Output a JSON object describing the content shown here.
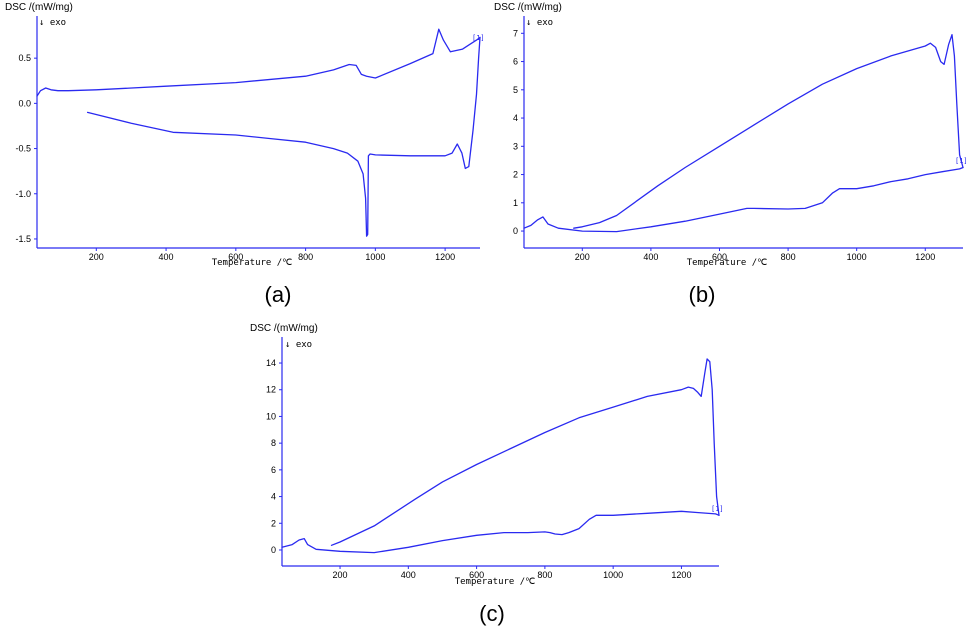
{
  "chart_data": [
    {
      "type": "line",
      "panel_label": "(a)",
      "ylabel": "DSC /(mW/mg)",
      "exo_label": "exo",
      "xlabel": "Temperature /℃",
      "end_marker": "[1]",
      "xlim": [
        30,
        1300
      ],
      "ylim": [
        -1.6,
        0.9
      ],
      "xticks": [
        200,
        400,
        600,
        800,
        1000,
        1200
      ],
      "yticks": [
        0.5,
        0.0,
        -0.5,
        -1.0,
        -1.5
      ],
      "ytick_labels": [
        "0.5",
        "0.0",
        "-0.5",
        "-1.0",
        "-1.5"
      ],
      "series": [
        {
          "x": [
            30,
            40,
            55,
            70,
            90,
            120,
            200,
            400,
            600,
            800,
            880,
            925,
            945,
            960,
            975,
            1000,
            1100,
            1165,
            1182,
            1195,
            1215,
            1250,
            1270,
            1290,
            1300
          ],
          "y": [
            0.08,
            0.14,
            0.17,
            0.15,
            0.14,
            0.14,
            0.15,
            0.19,
            0.23,
            0.3,
            0.37,
            0.43,
            0.42,
            0.32,
            0.3,
            0.28,
            0.44,
            0.55,
            0.82,
            0.7,
            0.57,
            0.6,
            0.65,
            0.7,
            0.73
          ]
        },
        {
          "x": [
            1300,
            1296,
            1290,
            1280,
            1268,
            1258,
            1248,
            1235,
            1220,
            1200,
            1100,
            1000,
            985,
            980,
            978,
            975,
            972,
            965,
            950,
            920,
            880,
            800,
            700,
            600,
            420,
            300,
            175
          ],
          "y": [
            0.73,
            0.5,
            0.1,
            -0.3,
            -0.7,
            -0.72,
            -0.55,
            -0.45,
            -0.55,
            -0.58,
            -0.58,
            -0.57,
            -0.56,
            -0.58,
            -1.45,
            -1.47,
            -1.05,
            -0.78,
            -0.64,
            -0.55,
            -0.5,
            -0.43,
            -0.39,
            -0.35,
            -0.32,
            -0.22,
            -0.1
          ]
        }
      ]
    },
    {
      "type": "line",
      "panel_label": "(b)",
      "ylabel": "DSC /(mW/mg)",
      "exo_label": "exo",
      "xlabel": "Temperature /℃",
      "end_marker": "[1]",
      "xlim": [
        30,
        1310
      ],
      "ylim": [
        -0.6,
        7.4
      ],
      "xticks": [
        200,
        400,
        600,
        800,
        1000,
        1200
      ],
      "yticks": [
        0,
        1,
        2,
        3,
        4,
        5,
        6,
        7
      ],
      "ytick_labels": [
        "0",
        "1",
        "2",
        "3",
        "4",
        "5",
        "6",
        "7"
      ],
      "series": [
        {
          "x": [
            30,
            50,
            70,
            85,
            100,
            130,
            200,
            300,
            400,
            500,
            600,
            680,
            700,
            800,
            850,
            900,
            930,
            950,
            1000,
            1050,
            1100,
            1150,
            1200,
            1250,
            1300,
            1310
          ],
          "y": [
            0.1,
            0.2,
            0.4,
            0.5,
            0.25,
            0.1,
            0.0,
            -0.02,
            0.15,
            0.35,
            0.6,
            0.8,
            0.8,
            0.78,
            0.8,
            1.0,
            1.35,
            1.5,
            1.5,
            1.6,
            1.75,
            1.85,
            2.0,
            2.1,
            2.2,
            2.25
          ]
        },
        {
          "x": [
            1310,
            1300,
            1292,
            1285,
            1278,
            1268,
            1255,
            1245,
            1230,
            1215,
            1200,
            1100,
            1000,
            900,
            800,
            700,
            600,
            500,
            420,
            300,
            250,
            200,
            175
          ],
          "y": [
            2.25,
            2.7,
            4.5,
            6.2,
            6.95,
            6.6,
            5.9,
            6.0,
            6.5,
            6.65,
            6.55,
            6.2,
            5.75,
            5.2,
            4.5,
            3.75,
            3.0,
            2.25,
            1.6,
            0.55,
            0.3,
            0.15,
            0.1
          ]
        }
      ]
    },
    {
      "type": "line",
      "panel_label": "(c)",
      "ylabel": "DSC /(mW/mg)",
      "exo_label": "exo",
      "xlabel": "Temperature /℃",
      "end_marker": "[1]",
      "xlim": [
        30,
        1310
      ],
      "ylim": [
        -1.2,
        15.5
      ],
      "xticks": [
        200,
        400,
        600,
        800,
        1000,
        1200
      ],
      "yticks": [
        0,
        2,
        4,
        6,
        8,
        10,
        12,
        14
      ],
      "ytick_labels": [
        "0",
        "2",
        "4",
        "6",
        "8",
        "10",
        "12",
        "14"
      ],
      "series": [
        {
          "x": [
            30,
            60,
            80,
            95,
            105,
            130,
            200,
            300,
            400,
            500,
            600,
            680,
            700,
            750,
            800,
            815,
            830,
            850,
            870,
            900,
            930,
            950,
            1000,
            1100,
            1200,
            1250,
            1300,
            1310
          ],
          "y": [
            0.2,
            0.4,
            0.75,
            0.85,
            0.4,
            0.05,
            -0.1,
            -0.2,
            0.2,
            0.7,
            1.1,
            1.3,
            1.3,
            1.3,
            1.35,
            1.3,
            1.2,
            1.15,
            1.3,
            1.6,
            2.3,
            2.6,
            2.6,
            2.75,
            2.9,
            2.8,
            2.7,
            2.6
          ]
        },
        {
          "x": [
            1310,
            1303,
            1296,
            1290,
            1283,
            1275,
            1268,
            1258,
            1248,
            1235,
            1220,
            1200,
            1100,
            1000,
            900,
            800,
            700,
            600,
            500,
            420,
            300,
            200,
            175
          ],
          "y": [
            2.6,
            4.0,
            8.0,
            12.0,
            14.1,
            14.3,
            13.2,
            11.5,
            11.8,
            12.1,
            12.2,
            12.0,
            11.5,
            10.7,
            9.9,
            8.8,
            7.6,
            6.4,
            5.1,
            3.8,
            1.8,
            0.6,
            0.35
          ]
        }
      ]
    }
  ],
  "colors": {
    "axis": "#2a2af0",
    "series": "#2a2af0",
    "text": "#000000"
  }
}
